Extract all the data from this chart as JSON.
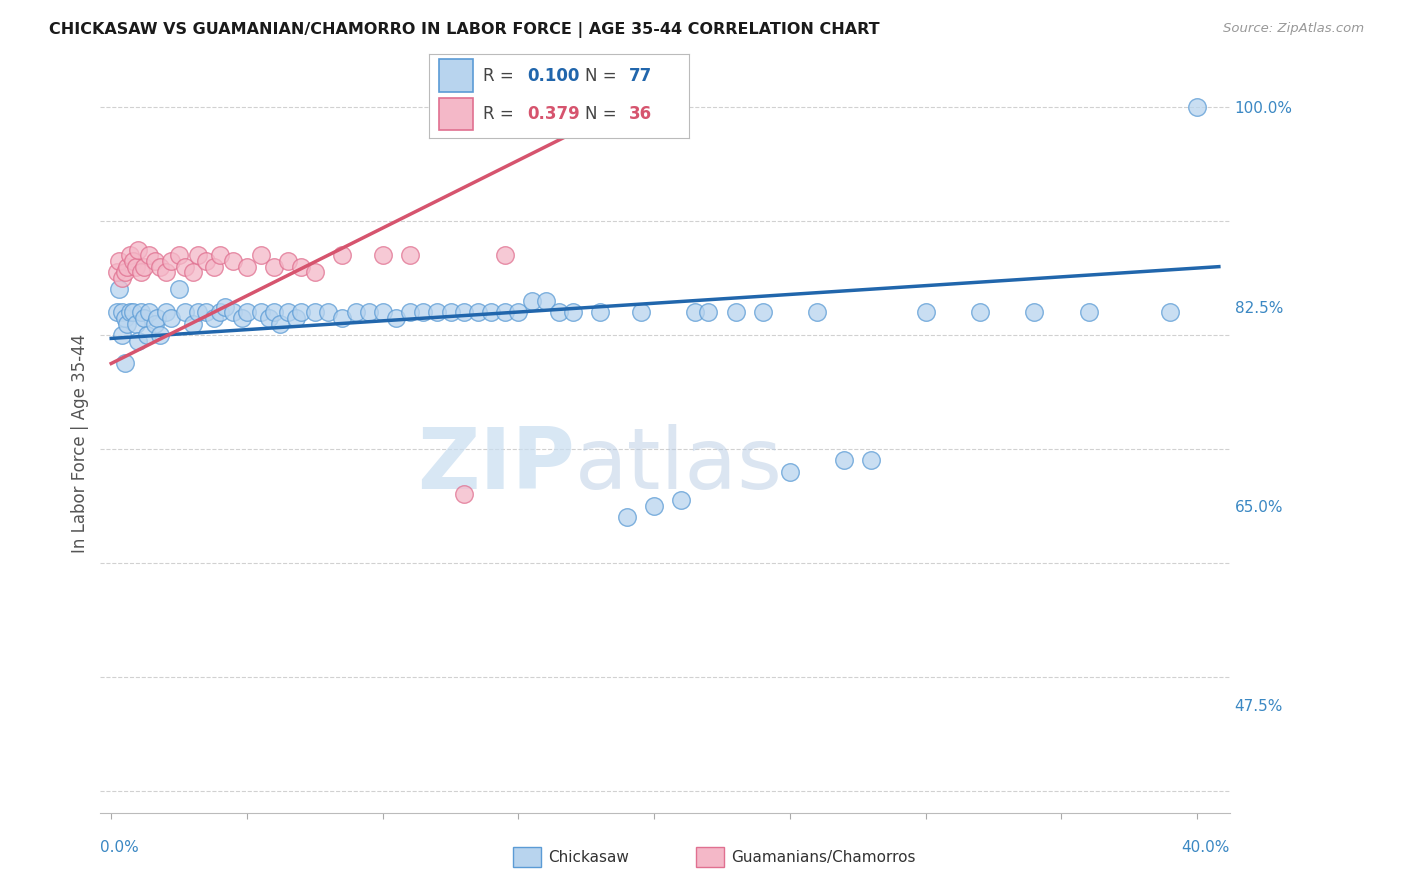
{
  "title": "CHICKASAW VS GUAMANIAN/CHAMORRO IN LABOR FORCE | AGE 35-44 CORRELATION CHART",
  "source": "Source: ZipAtlas.com",
  "ylabel": "In Labor Force | Age 35-44",
  "blue_fill": "#b8d4ee",
  "blue_edge": "#5b9bd5",
  "pink_fill": "#f4b8c8",
  "pink_edge": "#e07090",
  "blue_line": "#2166ac",
  "pink_line": "#d6546e",
  "R_blue": "0.100",
  "N_blue": "77",
  "R_pink": "0.379",
  "N_pink": "36",
  "xmin": -0.004,
  "xmax": 0.412,
  "ymin": 0.38,
  "ymax": 1.03,
  "right_yticks": [
    0.475,
    0.65,
    0.825,
    1.0
  ],
  "right_ylabels": [
    "47.5%",
    "65.0%",
    "82.5%",
    "100.0%"
  ],
  "watermark_zip": "ZIP",
  "watermark_atlas": "atlas",
  "blue_trend_x0": 0.0,
  "blue_trend_x1": 0.408,
  "blue_trend_y0": 0.797,
  "blue_trend_y1": 0.86,
  "pink_trend_x0": 0.0,
  "pink_trend_x1": 0.185,
  "pink_trend_y0": 0.775,
  "pink_trend_y1": 0.995,
  "chickasaw_x": [
    0.002,
    0.003,
    0.004,
    0.004,
    0.005,
    0.005,
    0.006,
    0.007,
    0.008,
    0.009,
    0.01,
    0.011,
    0.012,
    0.013,
    0.014,
    0.016,
    0.017,
    0.018,
    0.02,
    0.022,
    0.025,
    0.027,
    0.03,
    0.032,
    0.035,
    0.038,
    0.04,
    0.042,
    0.045,
    0.048,
    0.05,
    0.055,
    0.058,
    0.06,
    0.062,
    0.065,
    0.068,
    0.07,
    0.075,
    0.08,
    0.085,
    0.09,
    0.095,
    0.1,
    0.105,
    0.11,
    0.115,
    0.12,
    0.125,
    0.13,
    0.135,
    0.14,
    0.145,
    0.15,
    0.155,
    0.16,
    0.165,
    0.17,
    0.18,
    0.19,
    0.195,
    0.2,
    0.21,
    0.215,
    0.22,
    0.23,
    0.24,
    0.25,
    0.26,
    0.27,
    0.28,
    0.3,
    0.32,
    0.34,
    0.36,
    0.39,
    0.4
  ],
  "chickasaw_y": [
    0.82,
    0.84,
    0.8,
    0.82,
    0.775,
    0.815,
    0.81,
    0.82,
    0.82,
    0.81,
    0.795,
    0.82,
    0.815,
    0.8,
    0.82,
    0.81,
    0.815,
    0.8,
    0.82,
    0.815,
    0.84,
    0.82,
    0.81,
    0.82,
    0.82,
    0.815,
    0.82,
    0.825,
    0.82,
    0.815,
    0.82,
    0.82,
    0.815,
    0.82,
    0.81,
    0.82,
    0.815,
    0.82,
    0.82,
    0.82,
    0.815,
    0.82,
    0.82,
    0.82,
    0.815,
    0.82,
    0.82,
    0.82,
    0.82,
    0.82,
    0.82,
    0.82,
    0.82,
    0.82,
    0.83,
    0.83,
    0.82,
    0.82,
    0.82,
    0.64,
    0.82,
    0.65,
    0.655,
    0.82,
    0.82,
    0.82,
    0.82,
    0.68,
    0.82,
    0.69,
    0.69,
    0.82,
    0.82,
    0.82,
    0.82,
    0.82,
    1.0
  ],
  "guam_x": [
    0.002,
    0.003,
    0.004,
    0.005,
    0.006,
    0.007,
    0.008,
    0.009,
    0.01,
    0.011,
    0.012,
    0.014,
    0.016,
    0.018,
    0.02,
    0.022,
    0.025,
    0.027,
    0.03,
    0.032,
    0.035,
    0.038,
    0.04,
    0.045,
    0.05,
    0.055,
    0.06,
    0.065,
    0.07,
    0.075,
    0.085,
    0.1,
    0.11,
    0.13,
    0.145,
    0.175
  ],
  "guam_y": [
    0.855,
    0.865,
    0.85,
    0.855,
    0.86,
    0.87,
    0.865,
    0.86,
    0.875,
    0.855,
    0.86,
    0.87,
    0.865,
    0.86,
    0.855,
    0.865,
    0.87,
    0.86,
    0.855,
    0.87,
    0.865,
    0.86,
    0.87,
    0.865,
    0.86,
    0.87,
    0.86,
    0.865,
    0.86,
    0.855,
    0.87,
    0.87,
    0.87,
    0.66,
    0.87,
    1.0
  ]
}
